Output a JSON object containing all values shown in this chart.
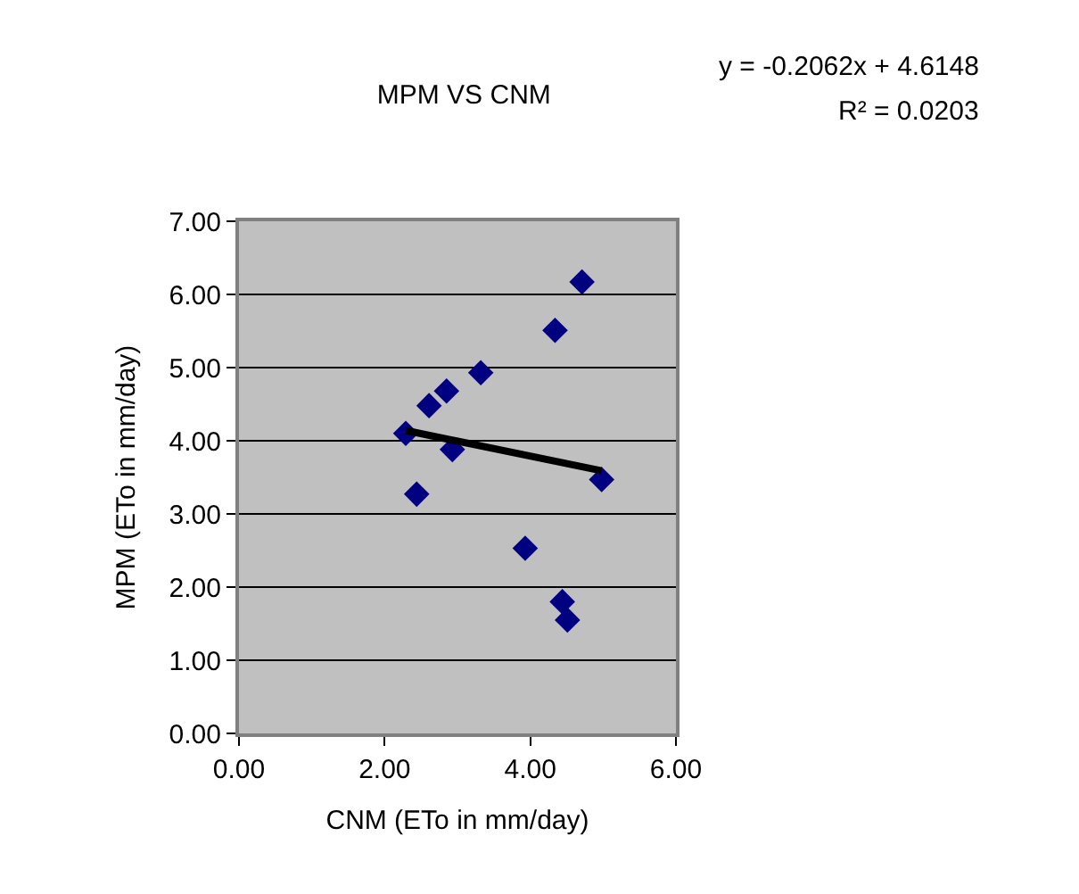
{
  "chart_data": {
    "type": "scatter",
    "title": "MPM VS CNM",
    "xlabel": "CNM (ETo in mm/day)",
    "ylabel": "MPM (ETo in mm/day)",
    "annotations": [
      "y = -0.2062x + 4.6148",
      "R² = 0.0203"
    ],
    "series": [
      {
        "color": "#000080",
        "marker": "diamond",
        "x": [
          2.29,
          2.44,
          2.61,
          2.85,
          2.93,
          3.32,
          3.93,
          4.34,
          4.44,
          4.51,
          4.71,
          4.98
        ],
        "values": [
          4.1,
          3.27,
          4.48,
          4.68,
          3.88,
          4.93,
          2.53,
          5.51,
          1.8,
          1.55,
          6.17,
          3.47
        ]
      },
      {
        "type": "line",
        "color": "#000000",
        "marker": "none",
        "line_style": "solid",
        "x": [
          2.29,
          4.98
        ],
        "values": [
          4.14,
          3.59
        ]
      }
    ],
    "xlim": [
      0,
      6
    ],
    "xticks": [
      {
        "value": 0,
        "label": "0.00"
      },
      {
        "value": 2,
        "label": "2.00"
      },
      {
        "value": 4,
        "label": "4.00"
      },
      {
        "value": 6,
        "label": "6.00"
      }
    ],
    "ylim": [
      0,
      7
    ],
    "yticks": [
      {
        "value": 0,
        "label": "0.00"
      },
      {
        "value": 1,
        "label": "1.00"
      },
      {
        "value": 2,
        "label": "2.00"
      },
      {
        "value": 3,
        "label": "3.00"
      },
      {
        "value": 4,
        "label": "4.00"
      },
      {
        "value": 5,
        "label": "5.00"
      },
      {
        "value": 6,
        "label": "6.00"
      },
      {
        "value": 7,
        "label": "7.00"
      }
    ],
    "grid": "y"
  }
}
